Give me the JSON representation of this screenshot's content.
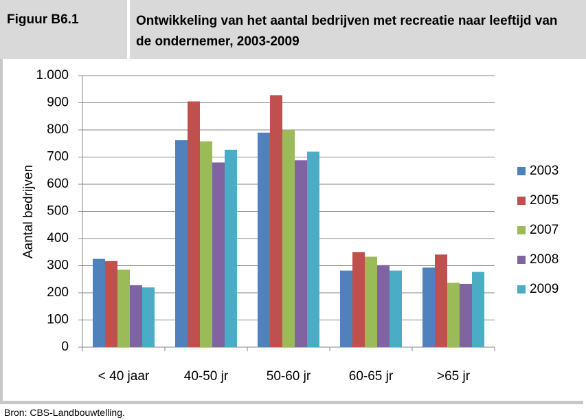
{
  "figure_label": "Figuur B6.1",
  "source": "Bron: CBS-Landbouwtelling.",
  "chart_data": {
    "type": "bar",
    "title": "Ontwikkeling van het aantal bedrijven met recreatie naar leeftijd van de ondernemer, 2003-2009",
    "y_label": "Aantal bedrijven",
    "categories": [
      "< 40 jaar",
      "40-50 jr",
      "50-60 jr",
      "60-65 jr",
      ">65 jr"
    ],
    "series": [
      {
        "name": "2003",
        "color": "#4f81bd",
        "values": [
          325,
          762,
          790,
          282,
          293
        ]
      },
      {
        "name": "2005",
        "color": "#c0504d",
        "values": [
          317,
          905,
          928,
          350,
          341
        ]
      },
      {
        "name": "2007",
        "color": "#9bbb59",
        "values": [
          285,
          758,
          800,
          333,
          237
        ]
      },
      {
        "name": "2008",
        "color": "#8064a2",
        "values": [
          228,
          680,
          688,
          302,
          233
        ]
      },
      {
        "name": "2009",
        "color": "#4bacc6",
        "values": [
          220,
          727,
          720,
          282,
          277
        ]
      }
    ],
    "ylim": [
      0,
      1000
    ],
    "yticks": [
      0,
      100,
      200,
      300,
      400,
      500,
      600,
      700,
      800,
      900,
      {
        "value": 1000,
        "label": "1.000"
      }
    ],
    "grid": true,
    "legend": "right"
  }
}
